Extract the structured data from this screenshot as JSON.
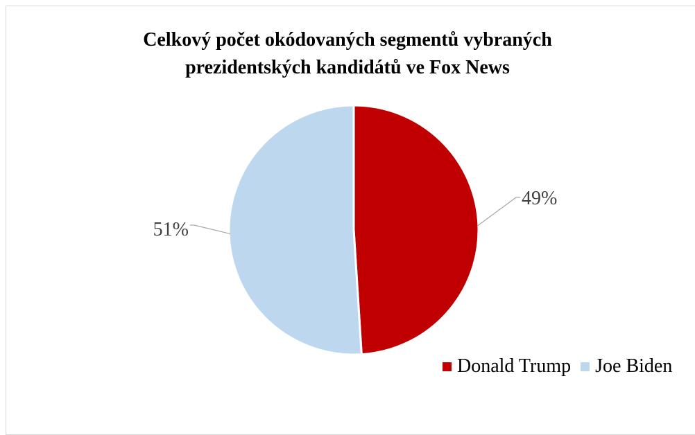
{
  "chart_data": {
    "type": "pie",
    "title": "Celkový počet okódovaných segmentů vybraných prezidentských kandidátů ve Fox News",
    "title_lines": [
      "Celkový počet okódovaných segmentů vybraných",
      "prezidentských kandidátů ve Fox News"
    ],
    "slices": [
      {
        "name": "Donald Trump",
        "value": 49,
        "label": "49%",
        "color": "#c00000"
      },
      {
        "name": "Joe Biden",
        "value": 51,
        "label": "51%",
        "color": "#bdd7ee"
      }
    ],
    "legend_position": "bottom-right",
    "start_angle_deg": 0,
    "direction": "clockwise"
  }
}
